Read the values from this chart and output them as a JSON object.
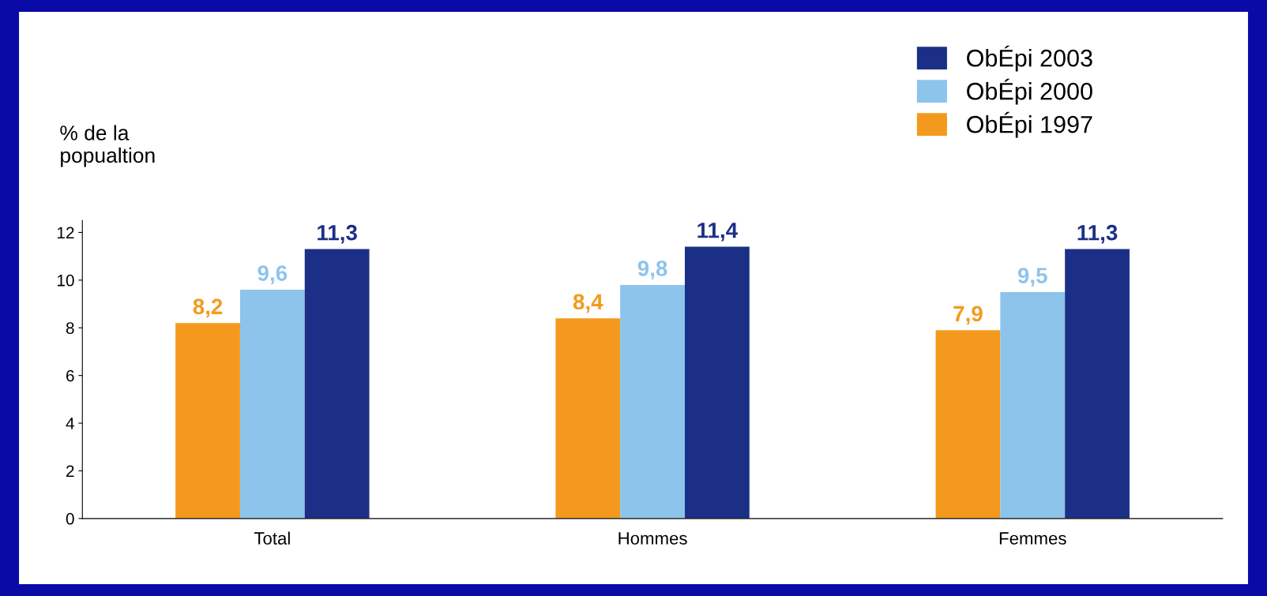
{
  "chart_data": {
    "type": "bar",
    "ylabel": "% de la\npopualtion",
    "categories": [
      "Total",
      "Hommes",
      "Femmes"
    ],
    "series": [
      {
        "name": "ObÉpi 1997",
        "color": "#f39a1e",
        "values": [
          8.2,
          8.4,
          7.9
        ],
        "value_labels": [
          "8,2",
          "8,4",
          "7,9"
        ]
      },
      {
        "name": "ObÉpi 2000",
        "color": "#8cc4ec",
        "values": [
          9.6,
          9.8,
          9.5
        ],
        "value_labels": [
          "9,6",
          "9,8",
          "9,5"
        ]
      },
      {
        "name": "ObÉpi 2003",
        "color": "#1c2f86",
        "values": [
          11.3,
          11.4,
          11.3
        ],
        "value_labels": [
          "11,3",
          "11,4",
          "11,3"
        ]
      }
    ],
    "ylim": [
      0,
      12.5
    ],
    "yticks": [
      0,
      2,
      4,
      6,
      8,
      10,
      12
    ],
    "grid": false,
    "legend": "top right"
  }
}
